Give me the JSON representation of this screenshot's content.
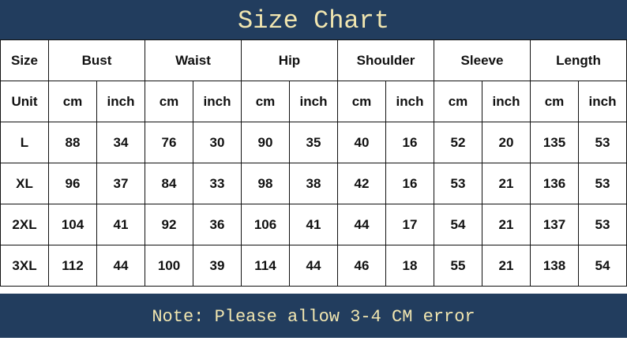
{
  "title": "Size Chart",
  "note": "Note: Please allow 3-4 CM error",
  "colors": {
    "banner": "#223d5e",
    "banner_text": "#f1e6b0"
  },
  "header": {
    "label": "Size",
    "measures": [
      "Bust",
      "Waist",
      "Hip",
      "Shoulder",
      "Sleeve",
      "Length"
    ]
  },
  "units": {
    "label": "Unit",
    "values": [
      "cm",
      "inch",
      "cm",
      "inch",
      "cm",
      "inch",
      "cm",
      "inch",
      "cm",
      "inch",
      "cm",
      "inch"
    ]
  },
  "rows": [
    {
      "size": "L",
      "values": [
        "88",
        "34",
        "76",
        "30",
        "90",
        "35",
        "40",
        "16",
        "52",
        "20",
        "135",
        "53"
      ]
    },
    {
      "size": "XL",
      "values": [
        "96",
        "37",
        "84",
        "33",
        "98",
        "38",
        "42",
        "16",
        "53",
        "21",
        "136",
        "53"
      ]
    },
    {
      "size": "2XL",
      "values": [
        "104",
        "41",
        "92",
        "36",
        "106",
        "41",
        "44",
        "17",
        "54",
        "21",
        "137",
        "53"
      ]
    },
    {
      "size": "3XL",
      "values": [
        "112",
        "44",
        "100",
        "39",
        "114",
        "44",
        "46",
        "18",
        "55",
        "21",
        "138",
        "54"
      ]
    }
  ]
}
